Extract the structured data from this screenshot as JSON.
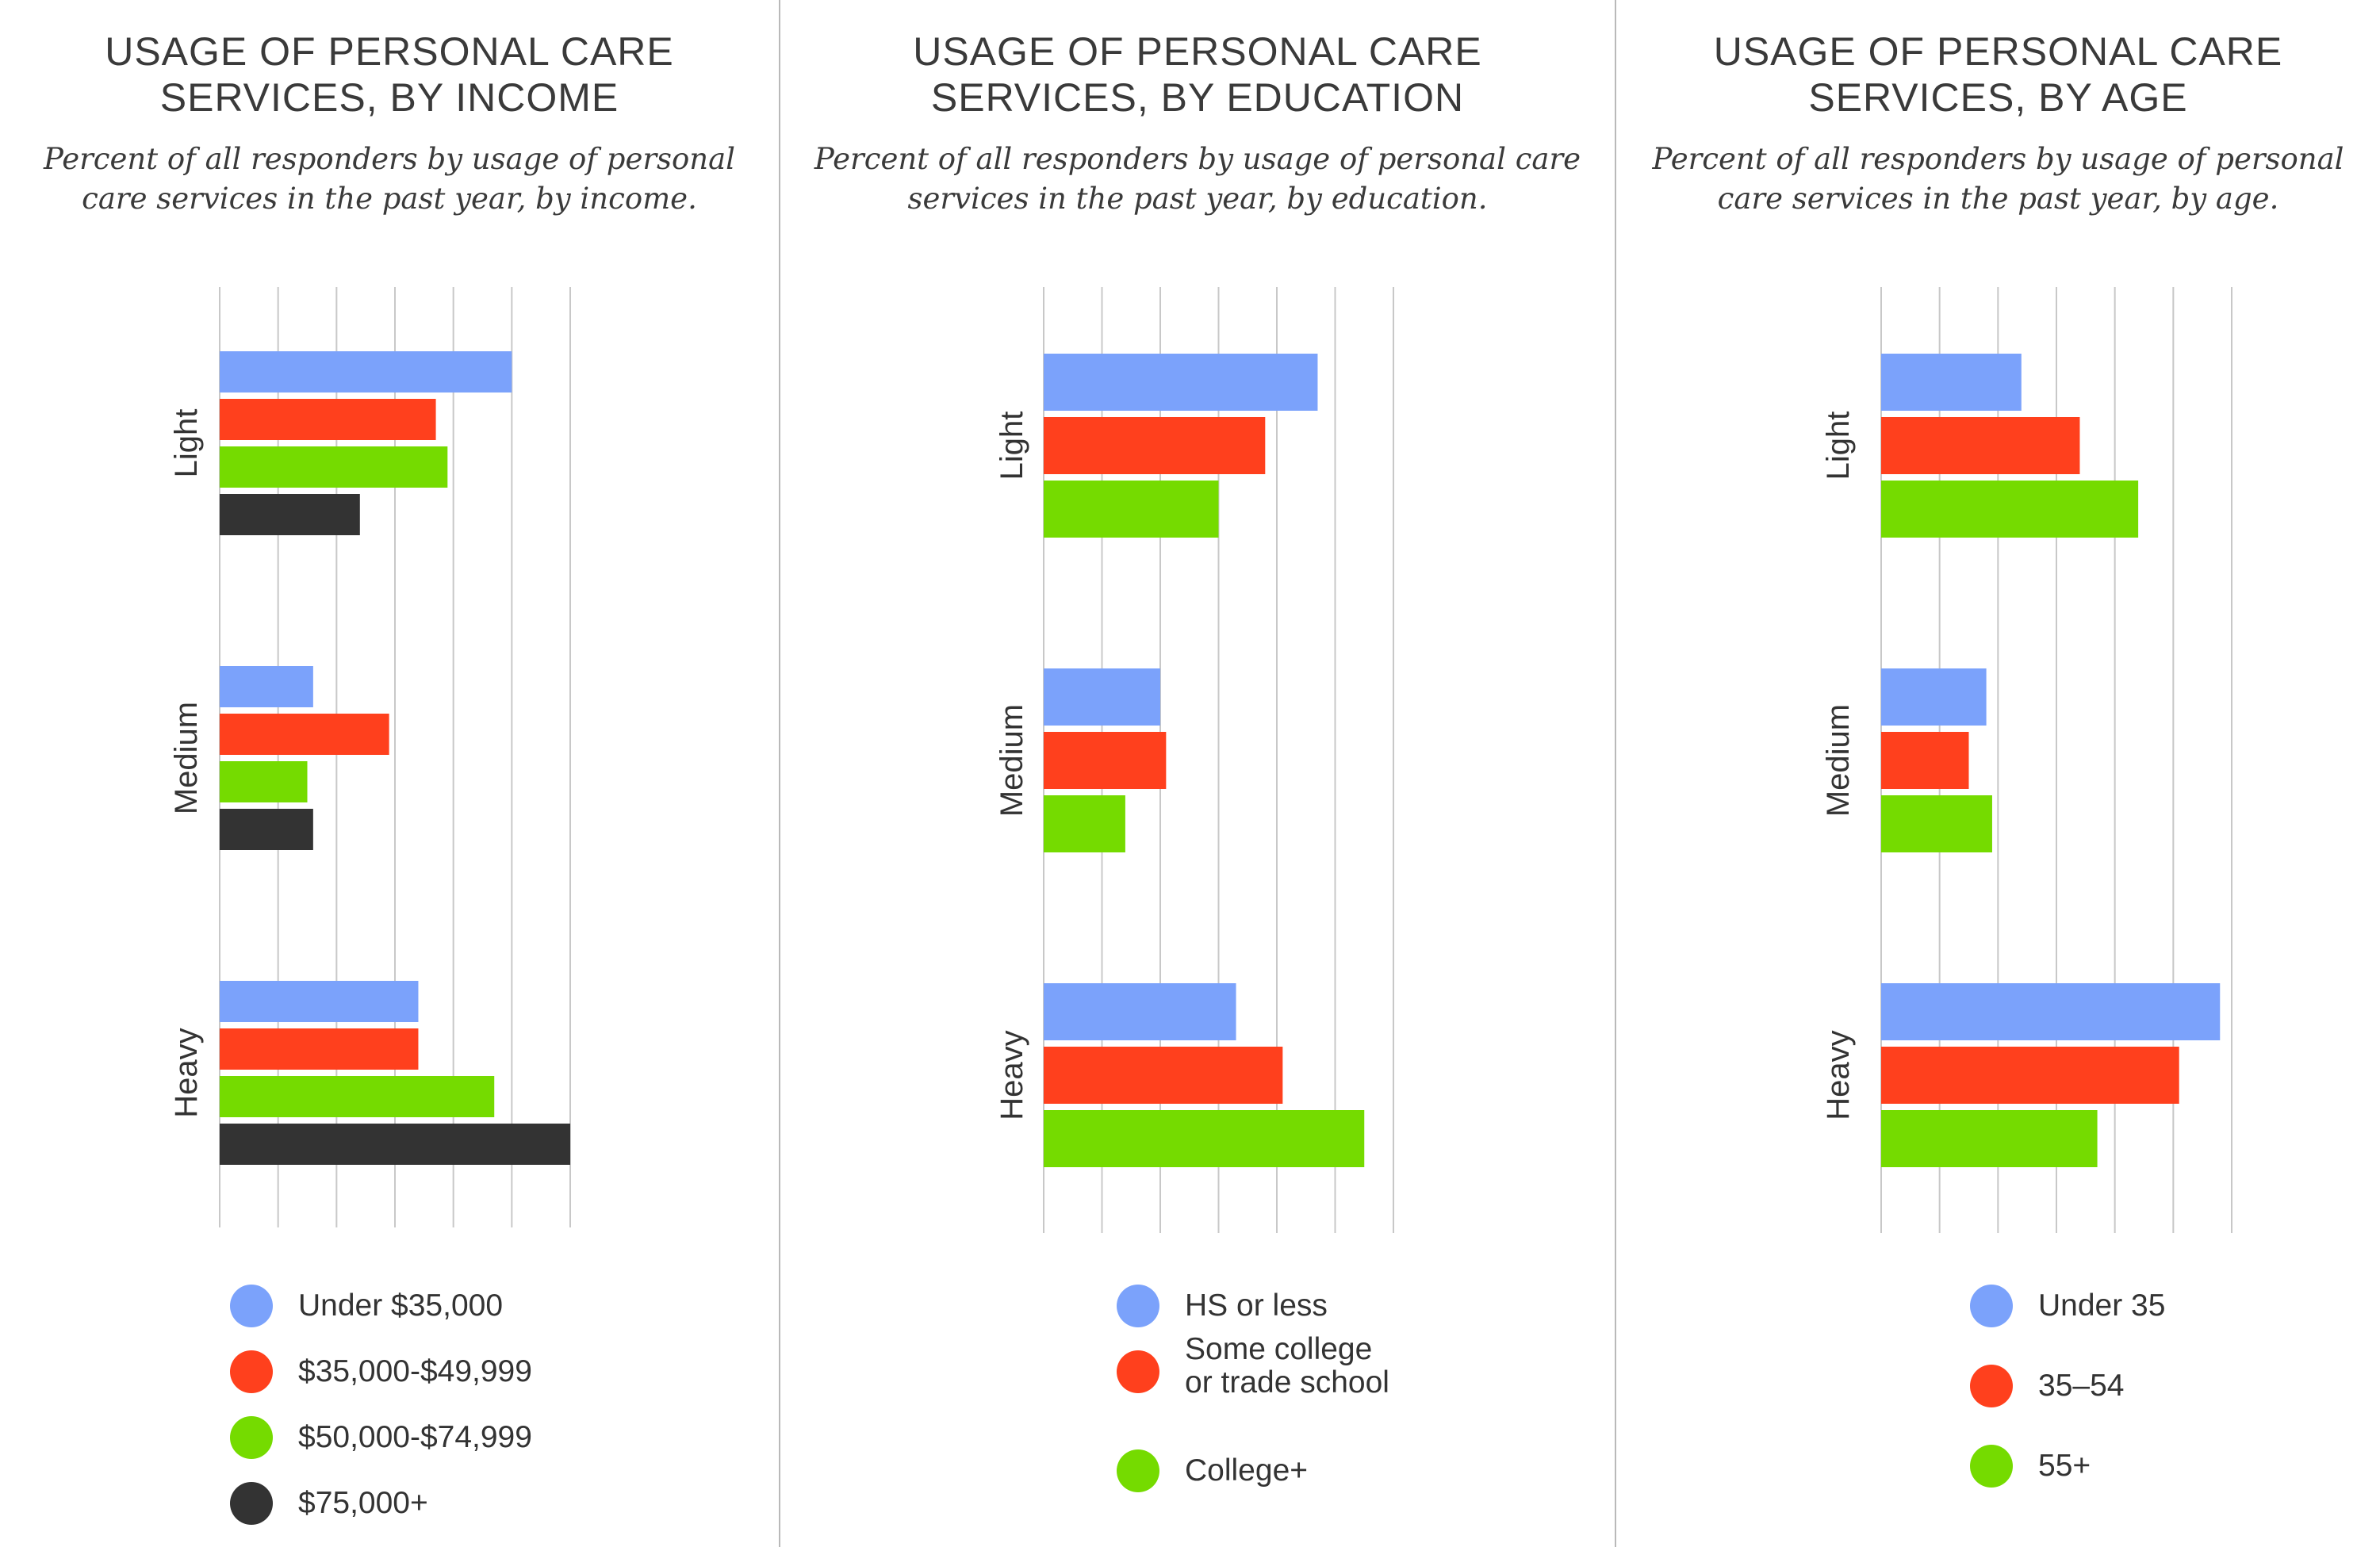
{
  "colors": {
    "blue": "#7ba2fb",
    "red": "#ff401d",
    "green": "#75db00",
    "dark": "#333333",
    "grid": "#c8c8c8",
    "divider": "#b9b9b9"
  },
  "chart_data": [
    {
      "type": "bar",
      "orientation": "horizontal",
      "title": "USAGE OF PERSONAL CARE SERVICES, BY INCOME",
      "title_lines": [
        "USAGE OF PERSONAL CARE",
        "SERVICES, BY INCOME"
      ],
      "subtitle": "Percent of all responders by usage of personal care services in the past year, by income.",
      "subtitle_lines": [
        "Percent of all responders by usage of personal",
        "care services in the past year, by income."
      ],
      "categories": [
        "Light",
        "Medium",
        "Heavy"
      ],
      "series": [
        {
          "name": "Under $35,000",
          "color": "#7ba2fb",
          "values": [
            50,
            16,
            34
          ]
        },
        {
          "name": "$35,000-$49,999",
          "color": "#ff401d",
          "values": [
            37,
            29,
            34
          ]
        },
        {
          "name": "$50,000-$74,999",
          "color": "#75db00",
          "values": [
            39,
            15,
            47
          ]
        },
        {
          "name": "$75,000+",
          "color": "#333333",
          "values": [
            24,
            16,
            60
          ]
        }
      ],
      "xlim": [
        0,
        60
      ],
      "grid": true,
      "legend_position": "bottom"
    },
    {
      "type": "bar",
      "orientation": "horizontal",
      "title": "USAGE OF PERSONAL CARE SERVICES, BY EDUCATION",
      "title_lines": [
        "USAGE OF PERSONAL CARE",
        "SERVICES, BY EDUCATION"
      ],
      "subtitle": "Percent of all responders by usage of personal care services in the past year, by education.",
      "subtitle_lines": [
        "Percent of all responders by usage of personal care",
        "services in the past year, by education."
      ],
      "categories": [
        "Light",
        "Medium",
        "Heavy"
      ],
      "series": [
        {
          "name": "HS or less",
          "color": "#7ba2fb",
          "values": [
            47,
            20,
            33
          ]
        },
        {
          "name": "Some college or trade school",
          "name_lines": [
            "Some college",
            "or trade school"
          ],
          "color": "#ff401d",
          "values": [
            38,
            21,
            41
          ]
        },
        {
          "name": "College+",
          "color": "#75db00",
          "values": [
            30,
            14,
            55
          ]
        }
      ],
      "xlim": [
        0,
        60
      ],
      "grid": true,
      "legend_position": "bottom"
    },
    {
      "type": "bar",
      "orientation": "horizontal",
      "title": "USAGE OF PERSONAL CARE SERVICES, BY AGE",
      "title_lines": [
        "USAGE OF PERSONAL CARE",
        "SERVICES, BY AGE"
      ],
      "subtitle": "Percent of all responders by usage of personal care services in the past year, by age.",
      "subtitle_lines": [
        "Percent of all responders by usage of personal",
        "care services in the past year, by age."
      ],
      "categories": [
        "Light",
        "Medium",
        "Heavy"
      ],
      "series": [
        {
          "name": "Under 35",
          "color": "#7ba2fb",
          "values": [
            24,
            18,
            58
          ]
        },
        {
          "name": "35–54",
          "color": "#ff401d",
          "values": [
            34,
            15,
            51
          ]
        },
        {
          "name": "55+",
          "color": "#75db00",
          "values": [
            44,
            19,
            37
          ]
        }
      ],
      "xlim": [
        0,
        60
      ],
      "grid": true,
      "legend_position": "bottom"
    }
  ]
}
